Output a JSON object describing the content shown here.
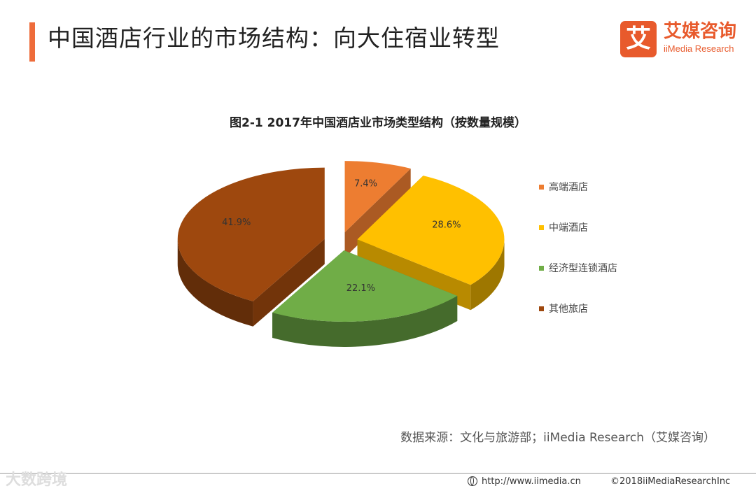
{
  "header": {
    "title": "中国酒店行业的市场结构：向大住宿业转型",
    "accent_color": "#ee6c3b"
  },
  "logo": {
    "mark": "艾",
    "name_cn": "艾媒咨询",
    "name_en": "iiMedia Research",
    "color": "#e85a2c"
  },
  "chart_data": {
    "type": "pie",
    "title": "图2-1 2017年中国酒店业市场类型结构（按数量规模）",
    "style": "3d-exploded",
    "legend_position": "right",
    "series": [
      {
        "categories": [
          "高端酒店",
          "中端酒店",
          "经济型连锁酒店",
          "其他旅店"
        ],
        "values": [
          7.4,
          28.6,
          22.1,
          41.9
        ],
        "labels": [
          "7.4%",
          "28.6%",
          "22.1%",
          "41.9%"
        ],
        "colors": [
          "#ed7d31",
          "#ffc000",
          "#70ad47",
          "#9e480e"
        ]
      }
    ]
  },
  "source": "数据来源：文化与旅游部；iiMedia Research（艾媒咨询）",
  "footer": {
    "watermark": "大数跨境",
    "url": "http://www.iimedia.cn",
    "copyright": "©2018iiMediaResearchInc"
  }
}
